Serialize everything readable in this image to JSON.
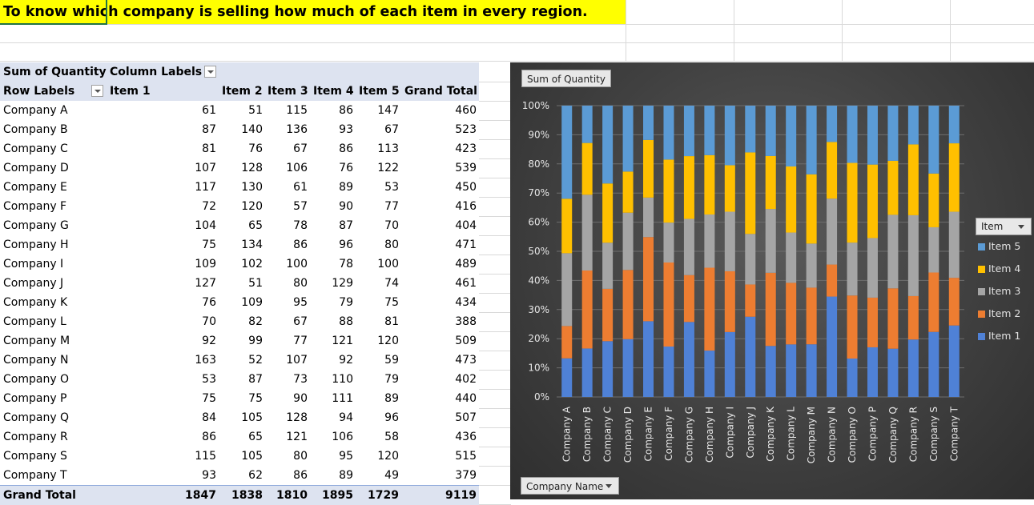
{
  "sheet": {
    "title": "To know which company is selling how much of each item in every region."
  },
  "pivot": {
    "measure": "Sum of Quantity",
    "column_labels": "Column Labels",
    "row_labels": "Row Labels",
    "columns": [
      "Item 1",
      "Item 2",
      "Item 3",
      "Item 4",
      "Item 5",
      "Grand Total"
    ],
    "rows": [
      {
        "label": "Company A",
        "values": [
          "61",
          "51",
          "115",
          "86",
          "147",
          "460"
        ]
      },
      {
        "label": "Company B",
        "values": [
          "87",
          "140",
          "136",
          "93",
          "67",
          "523"
        ]
      },
      {
        "label": "Company C",
        "values": [
          "81",
          "76",
          "67",
          "86",
          "113",
          "423"
        ]
      },
      {
        "label": "Company D",
        "values": [
          "107",
          "128",
          "106",
          "76",
          "122",
          "539"
        ]
      },
      {
        "label": "Company E",
        "values": [
          "117",
          "130",
          "61",
          "89",
          "53",
          "450"
        ]
      },
      {
        "label": "Company F",
        "values": [
          "72",
          "120",
          "57",
          "90",
          "77",
          "416"
        ]
      },
      {
        "label": "Company G",
        "values": [
          "104",
          "65",
          "78",
          "87",
          "70",
          "404"
        ]
      },
      {
        "label": "Company H",
        "values": [
          "75",
          "134",
          "86",
          "96",
          "80",
          "471"
        ]
      },
      {
        "label": "Company I",
        "values": [
          "109",
          "102",
          "100",
          "78",
          "100",
          "489"
        ]
      },
      {
        "label": "Company J",
        "values": [
          "127",
          "51",
          "80",
          "129",
          "74",
          "461"
        ]
      },
      {
        "label": "Company K",
        "values": [
          "76",
          "109",
          "95",
          "79",
          "75",
          "434"
        ]
      },
      {
        "label": "Company L",
        "values": [
          "70",
          "82",
          "67",
          "88",
          "81",
          "388"
        ]
      },
      {
        "label": "Company M",
        "values": [
          "92",
          "99",
          "77",
          "121",
          "120",
          "509"
        ]
      },
      {
        "label": "Company N",
        "values": [
          "163",
          "52",
          "107",
          "92",
          "59",
          "473"
        ]
      },
      {
        "label": "Company O",
        "values": [
          "53",
          "87",
          "73",
          "110",
          "79",
          "402"
        ]
      },
      {
        "label": "Company P",
        "values": [
          "75",
          "75",
          "90",
          "111",
          "89",
          "440"
        ]
      },
      {
        "label": "Company Q",
        "values": [
          "84",
          "105",
          "128",
          "94",
          "96",
          "507"
        ]
      },
      {
        "label": "Company R",
        "values": [
          "86",
          "65",
          "121",
          "106",
          "58",
          "436"
        ]
      },
      {
        "label": "Company S",
        "values": [
          "115",
          "105",
          "80",
          "95",
          "120",
          "515"
        ]
      },
      {
        "label": "Company T",
        "values": [
          "93",
          "62",
          "86",
          "89",
          "49",
          "379"
        ]
      }
    ],
    "grand_total": {
      "label": "Grand Total",
      "values": [
        "1847",
        "1838",
        "1810",
        "1895",
        "1729",
        "9119"
      ]
    }
  },
  "chart": {
    "measure_chip": "Sum of Quantity",
    "axis_field_chip": "Company Name",
    "legend_field": "Item",
    "legend": [
      "Item 5",
      "Item 4",
      "Item 3",
      "Item 2",
      "Item 1"
    ]
  },
  "chart_data": {
    "type": "bar",
    "stacked": "percent",
    "title": "",
    "xlabel": "",
    "ylabel": "",
    "ylim": [
      0,
      100
    ],
    "yticks": [
      "0%",
      "10%",
      "20%",
      "30%",
      "40%",
      "50%",
      "60%",
      "70%",
      "80%",
      "90%",
      "100%"
    ],
    "categories": [
      "Company A",
      "Company B",
      "Company C",
      "Company D",
      "Company E",
      "Company F",
      "Company G",
      "Company H",
      "Company I",
      "Company J",
      "Company K",
      "Company L",
      "Company M",
      "Company N",
      "Company O",
      "Company P",
      "Company Q",
      "Company R",
      "Company S",
      "Company T"
    ],
    "series": [
      {
        "name": "Item 1",
        "color": "#4f81d6",
        "values": [
          61,
          87,
          81,
          107,
          117,
          72,
          104,
          75,
          109,
          127,
          76,
          70,
          92,
          163,
          53,
          75,
          84,
          86,
          115,
          93
        ]
      },
      {
        "name": "Item 2",
        "color": "#ed7d31",
        "values": [
          51,
          140,
          76,
          128,
          130,
          120,
          65,
          134,
          102,
          51,
          109,
          82,
          99,
          52,
          87,
          75,
          105,
          65,
          105,
          62
        ]
      },
      {
        "name": "Item 3",
        "color": "#a5a5a5",
        "values": [
          115,
          136,
          67,
          106,
          61,
          57,
          78,
          86,
          100,
          80,
          95,
          67,
          77,
          107,
          73,
          90,
          128,
          121,
          80,
          86
        ]
      },
      {
        "name": "Item 4",
        "color": "#ffc000",
        "values": [
          86,
          93,
          86,
          76,
          89,
          90,
          87,
          96,
          78,
          129,
          79,
          88,
          121,
          92,
          110,
          111,
          94,
          106,
          95,
          89
        ]
      },
      {
        "name": "Item 5",
        "color": "#5b9bd5",
        "values": [
          147,
          67,
          113,
          122,
          53,
          77,
          70,
          80,
          100,
          74,
          75,
          81,
          120,
          59,
          79,
          89,
          96,
          58,
          120,
          49
        ]
      }
    ]
  }
}
